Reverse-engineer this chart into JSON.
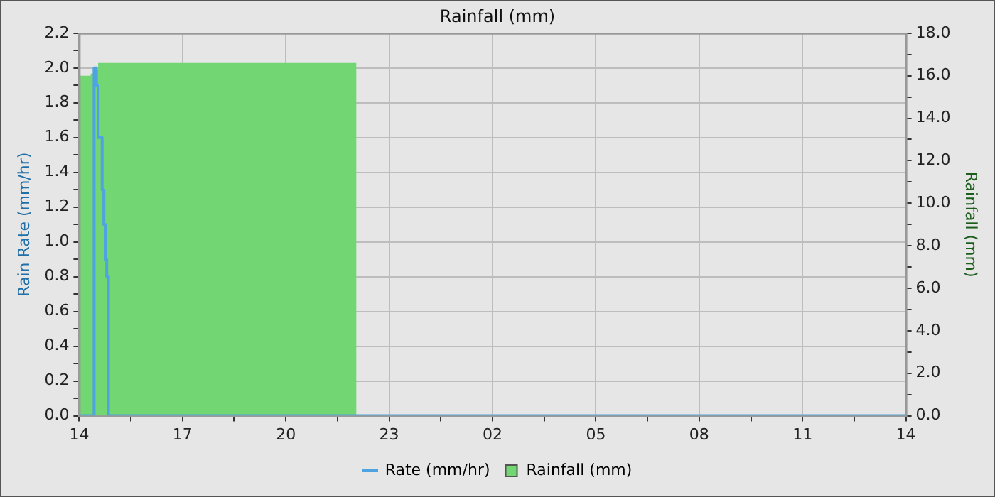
{
  "chart_data": {
    "type": "step",
    "title": "Rainfall (mm)",
    "ylabel": "Rain Rate (mm/hr)",
    "y2label": "Rainfall (mm)",
    "series": [
      {
        "name": "Rate (mm/hr)",
        "color": "#4fa3e0",
        "x": [
          "--01-01T14:00",
          "--01-01T14:26",
          "--01-01T14:30",
          "--01-01T14:33",
          "--01-01T14:40",
          "--01-01T14:43",
          "--01-01T14:46",
          "--01-01T14:48",
          "--01-01T14:51",
          "--01-02T14:00"
        ],
        "values": [
          0,
          2.0,
          1.9,
          1.6,
          1.3,
          1.1,
          0.9,
          0.8,
          0,
          0
        ]
      },
      {
        "name": "Rainfall (mm)",
        "type": "area",
        "axis": "y2",
        "color": "#72d672",
        "x": [
          "--01-01T14:00",
          "--01-01T14:20",
          "--01-01T14:24",
          "--01-01T14:33",
          "--01-01T22:03"
        ],
        "values": [
          16.0,
          16.1,
          16.3,
          16.6,
          16.6
        ]
      }
    ],
    "xlim": [
      "--01-01T14:00",
      "--01-02T14:00"
    ],
    "xticks": [
      {
        "value": "--01-01T14:00",
        "label": "14"
      },
      {
        "value": "--01-01T15:30",
        "label": null
      },
      {
        "value": "--01-01T17:00",
        "label": "17"
      },
      {
        "value": "--01-01T18:30",
        "label": null
      },
      {
        "value": "--01-01T20:00",
        "label": "20"
      },
      {
        "value": "--01-01T21:30",
        "label": null
      },
      {
        "value": "--01-01T23:00",
        "label": "23"
      },
      {
        "value": "--01-02T00:30",
        "label": null
      },
      {
        "value": "--01-02T02:00",
        "label": "02"
      },
      {
        "value": "--01-02T03:30",
        "label": null
      },
      {
        "value": "--01-02T05:00",
        "label": "05"
      },
      {
        "value": "--01-02T06:30",
        "label": null
      },
      {
        "value": "--01-02T08:00",
        "label": "08"
      },
      {
        "value": "--01-02T09:30",
        "label": null
      },
      {
        "value": "--01-02T11:00",
        "label": "11"
      },
      {
        "value": "--01-02T12:30",
        "label": null
      },
      {
        "value": "--01-02T14:00",
        "label": "14"
      }
    ],
    "ylim": [
      0,
      2.2
    ],
    "yticks": [
      {
        "value": 0,
        "label": "0.0"
      },
      {
        "value": 0.1,
        "label": null
      },
      {
        "value": 0.2,
        "label": "0.2"
      },
      {
        "value": 0.3,
        "label": null
      },
      {
        "value": 0.4,
        "label": "0.4"
      },
      {
        "value": 0.5,
        "label": null
      },
      {
        "value": 0.6,
        "label": "0.6"
      },
      {
        "value": 0.7,
        "label": null
      },
      {
        "value": 0.8,
        "label": "0.8"
      },
      {
        "value": 0.9,
        "label": null
      },
      {
        "value": 1.0,
        "label": "1.0"
      },
      {
        "value": 1.1,
        "label": null
      },
      {
        "value": 1.2,
        "label": "1.2"
      },
      {
        "value": 1.3,
        "label": null
      },
      {
        "value": 1.4,
        "label": "1.4"
      },
      {
        "value": 1.5,
        "label": null
      },
      {
        "value": 1.6,
        "label": "1.6"
      },
      {
        "value": 1.7,
        "label": null
      },
      {
        "value": 1.8,
        "label": "1.8"
      },
      {
        "value": 1.9,
        "label": null
      },
      {
        "value": 2.0,
        "label": "2.0"
      },
      {
        "value": 2.1,
        "label": null
      },
      {
        "value": 2.2,
        "label": "2.2"
      }
    ],
    "y2lim": [
      0,
      18
    ],
    "y2ticks": [
      {
        "value": 0,
        "label": "0.0"
      },
      {
        "value": 1,
        "label": null
      },
      {
        "value": 2,
        "label": "2.0"
      },
      {
        "value": 3,
        "label": null
      },
      {
        "value": 4,
        "label": "4.0"
      },
      {
        "value": 5,
        "label": null
      },
      {
        "value": 6,
        "label": "6.0"
      },
      {
        "value": 7,
        "label": null
      },
      {
        "value": 8,
        "label": "8.0"
      },
      {
        "value": 9,
        "label": null
      },
      {
        "value": 10,
        "label": "10.0"
      },
      {
        "value": 11,
        "label": null
      },
      {
        "value": 12,
        "label": "12.0"
      },
      {
        "value": 13,
        "label": null
      },
      {
        "value": 14,
        "label": "14.0"
      },
      {
        "value": 15,
        "label": null
      },
      {
        "value": 16,
        "label": "16.0"
      },
      {
        "value": 17,
        "label": null
      },
      {
        "value": 18,
        "label": "18.0"
      }
    ],
    "grid": true,
    "legend": "bottom"
  }
}
